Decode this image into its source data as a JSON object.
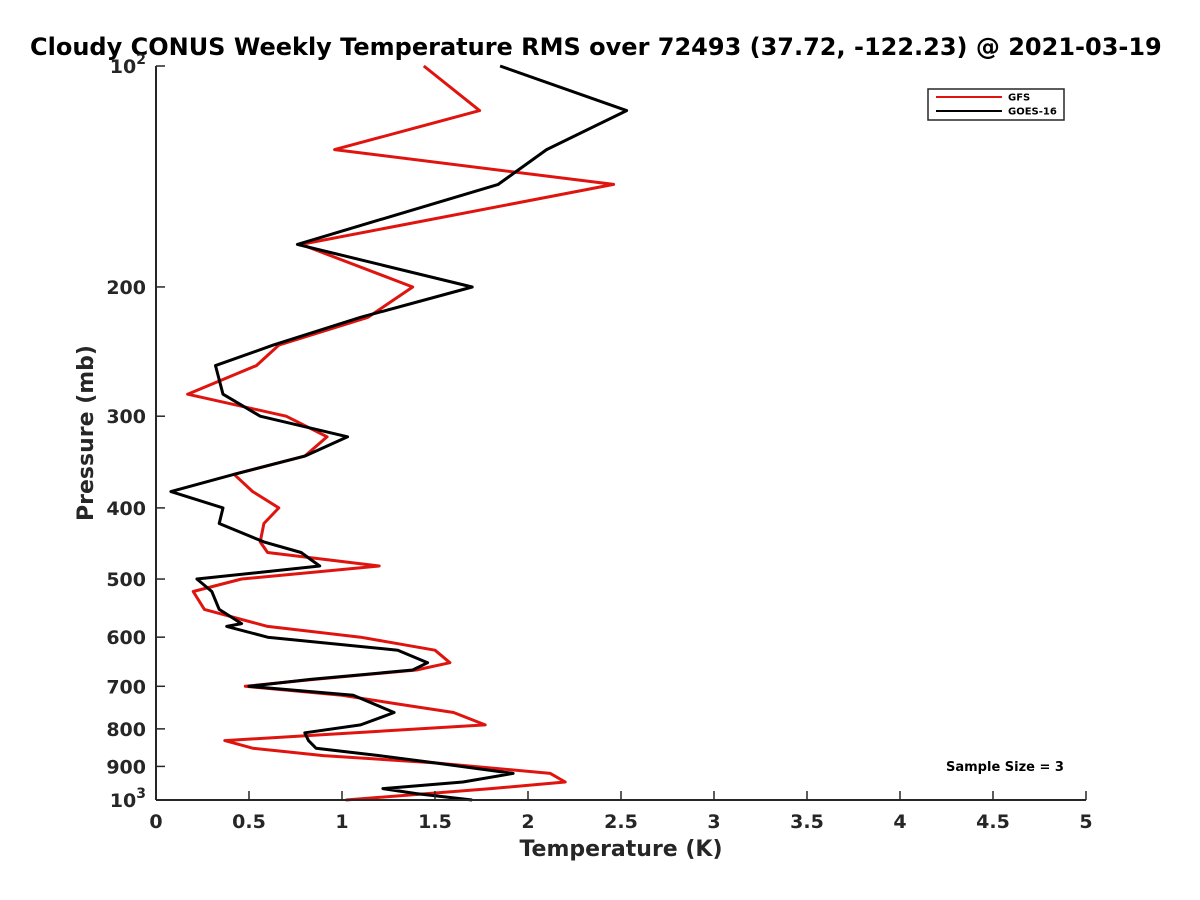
{
  "chart_data": {
    "type": "line",
    "title": "Cloudy CONUS Weekly Temperature RMS over 72493 (37.72, -122.23) @ 2021-03-19",
    "xlabel": "Temperature (K)",
    "ylabel": "Pressure (mb)",
    "xlim": [
      0,
      5
    ],
    "ylim": [
      100,
      1000
    ],
    "y_scale": "log",
    "y_reversed": true,
    "x_ticks": [
      "0",
      "0.5",
      "1",
      "1.5",
      "2",
      "2.5",
      "3",
      "3.5",
      "4",
      "4.5",
      "5"
    ],
    "y_ticks": [
      {
        "value": 100,
        "base": "10",
        "exp": "2"
      },
      {
        "value": 200,
        "label": "200"
      },
      {
        "value": 300,
        "label": "300"
      },
      {
        "value": 400,
        "label": "400"
      },
      {
        "value": 500,
        "label": "500"
      },
      {
        "value": 600,
        "label": "600"
      },
      {
        "value": 700,
        "label": "700"
      },
      {
        "value": 800,
        "label": "800"
      },
      {
        "value": 900,
        "label": "900"
      },
      {
        "value": 1000,
        "base": "10",
        "exp": "3"
      }
    ],
    "grid": false,
    "legend_position": "top-right",
    "annotation": "Sample Size = 3",
    "series": [
      {
        "name": "GFS",
        "color": "#e0140f",
        "points": [
          [
            1.44,
            100
          ],
          [
            1.74,
            115
          ],
          [
            0.96,
            130
          ],
          [
            2.46,
            145
          ],
          [
            0.78,
            175
          ],
          [
            1.38,
            200
          ],
          [
            1.14,
            220
          ],
          [
            0.66,
            240
          ],
          [
            0.54,
            256
          ],
          [
            0.17,
            280
          ],
          [
            0.7,
            300
          ],
          [
            0.92,
            320
          ],
          [
            0.8,
            340
          ],
          [
            0.42,
            360
          ],
          [
            0.52,
            380
          ],
          [
            0.66,
            400
          ],
          [
            0.58,
            420
          ],
          [
            0.56,
            445
          ],
          [
            0.6,
            460
          ],
          [
            1.2,
            480
          ],
          [
            0.46,
            500
          ],
          [
            0.2,
            520
          ],
          [
            0.26,
            550
          ],
          [
            0.6,
            580
          ],
          [
            1.1,
            600
          ],
          [
            1.5,
            625
          ],
          [
            1.58,
            650
          ],
          [
            1.4,
            665
          ],
          [
            0.85,
            685
          ],
          [
            0.48,
            700
          ],
          [
            1.0,
            720
          ],
          [
            1.3,
            740
          ],
          [
            1.6,
            760
          ],
          [
            1.77,
            790
          ],
          [
            0.37,
            830
          ],
          [
            0.52,
            850
          ],
          [
            0.9,
            870
          ],
          [
            1.5,
            890
          ],
          [
            2.12,
            920
          ],
          [
            2.2,
            945
          ],
          [
            1.8,
            965
          ],
          [
            1.02,
            1000
          ]
        ]
      },
      {
        "name": "GOES-16",
        "color": "#000000",
        "points": [
          [
            1.85,
            100
          ],
          [
            2.53,
            115
          ],
          [
            2.1,
            130
          ],
          [
            1.84,
            145
          ],
          [
            0.76,
            175
          ],
          [
            1.7,
            200
          ],
          [
            1.1,
            220
          ],
          [
            0.63,
            240
          ],
          [
            0.32,
            256
          ],
          [
            0.36,
            280
          ],
          [
            0.56,
            300
          ],
          [
            1.03,
            320
          ],
          [
            0.8,
            340
          ],
          [
            0.42,
            360
          ],
          [
            0.08,
            380
          ],
          [
            0.36,
            400
          ],
          [
            0.34,
            420
          ],
          [
            0.58,
            445
          ],
          [
            0.78,
            460
          ],
          [
            0.88,
            480
          ],
          [
            0.22,
            500
          ],
          [
            0.3,
            520
          ],
          [
            0.34,
            550
          ],
          [
            0.46,
            575
          ],
          [
            0.38,
            580
          ],
          [
            0.6,
            600
          ],
          [
            1.3,
            625
          ],
          [
            1.46,
            650
          ],
          [
            1.38,
            665
          ],
          [
            0.83,
            685
          ],
          [
            0.5,
            700
          ],
          [
            1.06,
            720
          ],
          [
            1.28,
            760
          ],
          [
            1.1,
            790
          ],
          [
            0.8,
            810
          ],
          [
            0.82,
            830
          ],
          [
            0.86,
            850
          ],
          [
            1.2,
            870
          ],
          [
            1.5,
            890
          ],
          [
            1.92,
            920
          ],
          [
            1.65,
            945
          ],
          [
            1.22,
            965
          ],
          [
            1.4,
            980
          ],
          [
            1.7,
            1000
          ]
        ]
      }
    ]
  }
}
